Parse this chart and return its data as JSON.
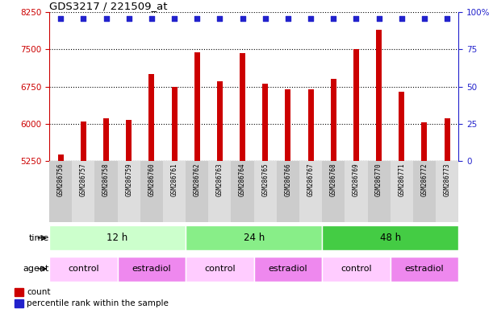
{
  "title": "GDS3217 / 221509_at",
  "samples": [
    "GSM286756",
    "GSM286757",
    "GSM286758",
    "GSM286759",
    "GSM286760",
    "GSM286761",
    "GSM286762",
    "GSM286763",
    "GSM286764",
    "GSM286765",
    "GSM286766",
    "GSM286767",
    "GSM286768",
    "GSM286769",
    "GSM286770",
    "GSM286771",
    "GSM286772",
    "GSM286773"
  ],
  "counts": [
    5380,
    6050,
    6100,
    6080,
    7000,
    6750,
    7450,
    6850,
    7430,
    6800,
    6700,
    6700,
    6900,
    7500,
    7900,
    6650,
    6020,
    6100
  ],
  "bar_color": "#cc0000",
  "dot_color": "#2222cc",
  "ylim_left": [
    5250,
    8250
  ],
  "ylim_right": [
    0,
    100
  ],
  "yticks_left": [
    5250,
    6000,
    6750,
    7500,
    8250
  ],
  "yticks_right": [
    0,
    25,
    50,
    75,
    100
  ],
  "grid_color": "#000000",
  "time_groups": [
    {
      "label": "12 h",
      "start": 0,
      "end": 6,
      "color": "#ccffcc"
    },
    {
      "label": "24 h",
      "start": 6,
      "end": 12,
      "color": "#88ee88"
    },
    {
      "label": "48 h",
      "start": 12,
      "end": 18,
      "color": "#44cc44"
    }
  ],
  "agent_groups": [
    {
      "label": "control",
      "start": 0,
      "end": 3,
      "color": "#ffccff"
    },
    {
      "label": "estradiol",
      "start": 3,
      "end": 6,
      "color": "#ee88ee"
    },
    {
      "label": "control",
      "start": 6,
      "end": 9,
      "color": "#ffccff"
    },
    {
      "label": "estradiol",
      "start": 9,
      "end": 12,
      "color": "#ee88ee"
    },
    {
      "label": "control",
      "start": 12,
      "end": 15,
      "color": "#ffccff"
    },
    {
      "label": "estradiol",
      "start": 15,
      "end": 18,
      "color": "#ee88ee"
    }
  ],
  "legend_items": [
    {
      "label": "count",
      "color": "#cc0000"
    },
    {
      "label": "percentile rank within the sample",
      "color": "#2222cc"
    }
  ],
  "time_label": "time",
  "agent_label": "agent",
  "right_axis_color": "#2222cc",
  "left_axis_color": "#cc0000",
  "background_color": "#ffffff",
  "sample_bg_even": "#cccccc",
  "sample_bg_odd": "#dddddd"
}
